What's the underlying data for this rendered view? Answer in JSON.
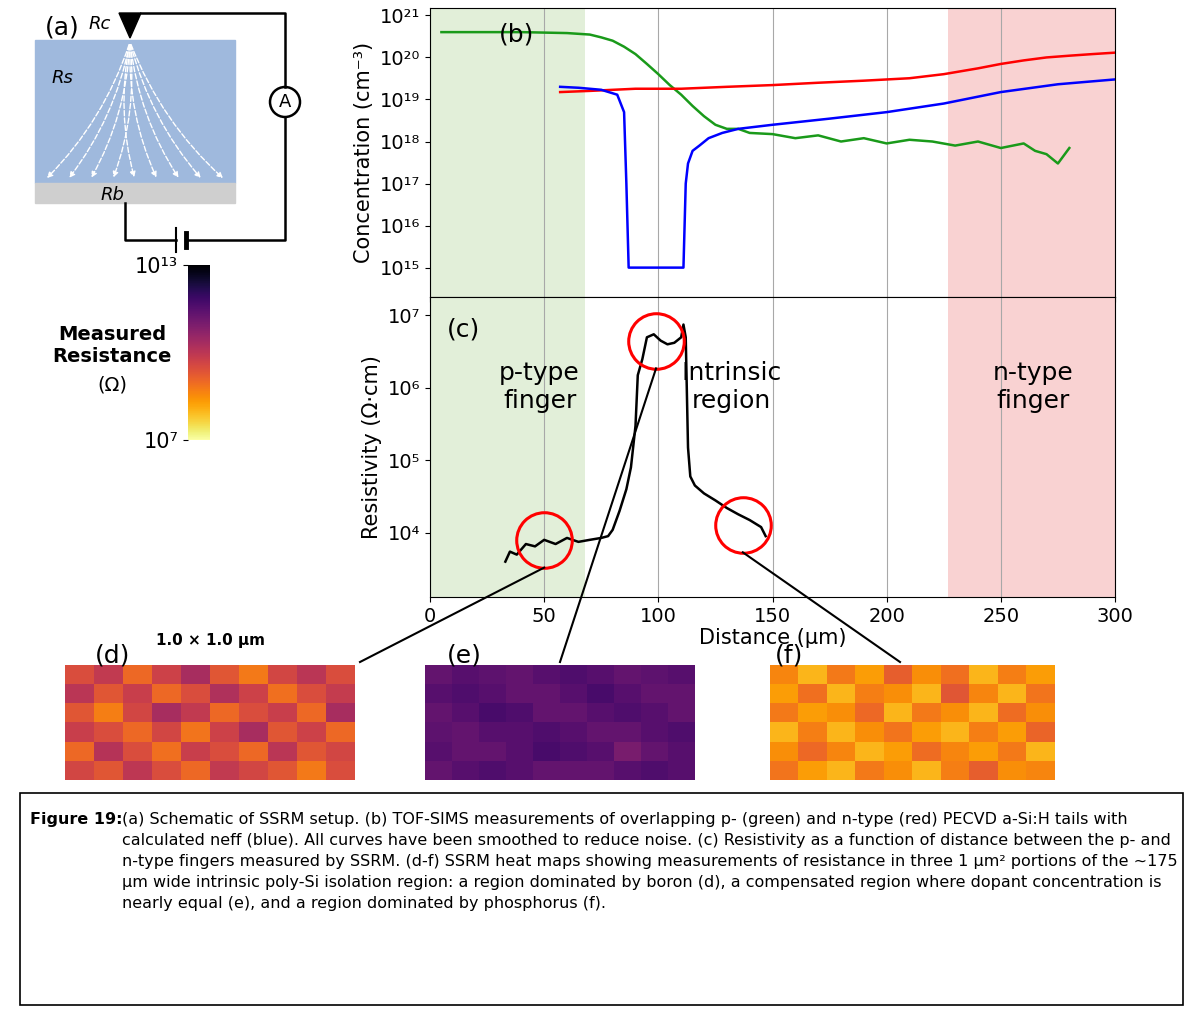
{
  "schematic": {
    "label": "(a)",
    "contact": "Rc",
    "spreading": "Rs",
    "back": "Rb",
    "meter": "A"
  },
  "colorbar": {
    "label": "Measured Resistance",
    "unit": "(Ω)",
    "log": true,
    "range": [
      10000000.0,
      10000000000000.0
    ],
    "ticks": [
      {
        "value": 10000000000000.0,
        "label": "10¹³"
      },
      {
        "value": 10000000.0,
        "label": "10⁷"
      }
    ]
  },
  "chart_data": [
    {
      "label": "(b)",
      "type": "line",
      "ylabel": "Concentration (cm⁻³)",
      "log": "y",
      "grid": "x",
      "tick_labels": "y",
      "xlim": [
        0,
        300
      ],
      "xticks": [
        0,
        50,
        100,
        150,
        200,
        250,
        300
      ],
      "ylim": [
        200000000000000.0,
        1.5e+21
      ],
      "yticks": [
        {
          "value": 1000000000000000.0,
          "label": "10¹⁵"
        },
        {
          "value": 1e+16,
          "label": "10¹⁶"
        },
        {
          "value": 1e+17,
          "label": "10¹⁷"
        },
        {
          "value": 1e+18,
          "label": "10¹⁸"
        },
        {
          "value": 1e+19,
          "label": "10¹⁹"
        },
        {
          "value": 1e+20,
          "label": "10²⁰"
        },
        {
          "value": 1e+21,
          "label": "10²¹"
        }
      ],
      "regions": [
        {
          "x": [
            0,
            68
          ],
          "color": "#e2efd9"
        },
        {
          "x": [
            227,
            300
          ],
          "color": "#f9d2d2"
        }
      ],
      "series": [
        {
          "color": "#1a9a1a",
          "x": [
            5,
            20,
            40,
            60,
            70,
            75,
            80,
            85,
            90,
            95,
            100,
            105,
            110,
            115,
            120,
            125,
            130,
            135,
            140,
            150,
            160,
            170,
            180,
            190,
            200,
            210,
            220,
            230,
            240,
            250,
            260,
            265,
            270,
            275,
            280
          ],
          "values": [
            4e+20,
            4e+20,
            4e+20,
            3.8e+20,
            3.5e+20,
            3e+20,
            2.5e+20,
            1.8e+20,
            1.2e+20,
            7e+19,
            4e+19,
            2.2e+19,
            1.3e+19,
            7e+18,
            4e+18,
            2.5e+18,
            2e+18,
            2e+18,
            1.6e+18,
            1.5e+18,
            1.2e+18,
            1.4e+18,
            1e+18,
            1.2e+18,
            9e+17,
            1.1e+18,
            1e+18,
            8e+17,
            1e+18,
            7e+17,
            9e+17,
            6e+17,
            5e+17,
            3e+17,
            7e+17
          ]
        },
        {
          "color": "#ff0000",
          "x": [
            57,
            70,
            90,
            110,
            130,
            150,
            170,
            190,
            210,
            225,
            240,
            250,
            260,
            270,
            280,
            290,
            300
          ],
          "values": [
            1.5e+19,
            1.6e+19,
            1.8e+19,
            1.8e+19,
            2e+19,
            2.2e+19,
            2.5e+19,
            2.8e+19,
            3.2e+19,
            4e+19,
            5.5e+19,
            7e+19,
            8.5e+19,
            1e+20,
            1.1e+20,
            1.2e+20,
            1.3e+20
          ]
        },
        {
          "color": "#0000ff",
          "x": [
            57,
            65,
            75,
            82,
            85,
            86,
            87,
            100,
            111,
            112,
            113,
            115,
            118,
            122,
            128,
            135,
            150,
            175,
            200,
            225,
            250,
            275,
            300
          ],
          "values": [
            2e+19,
            1.9e+19,
            1.7e+19,
            1.3e+19,
            5e+18,
            1e+17,
            1000000000000000.0,
            1000000000000000.0,
            1000000000000000.0,
            1e+17,
            3e+17,
            6e+17,
            8e+17,
            1.2e+18,
            1.6e+18,
            2e+18,
            2.5e+18,
            3.5e+18,
            5e+18,
            8e+18,
            1.5e+19,
            2.3e+19,
            3e+19
          ]
        }
      ]
    },
    {
      "label": "(c)",
      "type": "line",
      "xlabel": "Distance (µm)",
      "ylabel": "Resistivity (Ω·cm)",
      "log": "y",
      "grid": "x",
      "xlim": [
        0,
        300
      ],
      "xticks": [
        0,
        50,
        100,
        150,
        200,
        250,
        300
      ],
      "ylim": [
        1300,
        18000000.0
      ],
      "yticks": [
        {
          "value": 10000.0,
          "label": "10⁴"
        },
        {
          "value": 100000.0,
          "label": "10⁵"
        },
        {
          "value": 1000000.0,
          "label": "10⁶"
        },
        {
          "value": 10000000.0,
          "label": "10⁷"
        }
      ],
      "regions": [
        {
          "x": [
            0,
            68
          ],
          "color": "#e2efd9"
        },
        {
          "x": [
            227,
            300
          ],
          "color": "#f9d2d2"
        }
      ],
      "annotations": [
        "p-type finger",
        "Intrinsic region",
        "n-type finger"
      ],
      "series": [
        {
          "color": "#000000",
          "x": [
            33,
            35,
            38,
            42,
            46,
            50,
            55,
            60,
            65,
            70,
            75,
            78,
            80,
            83,
            86,
            88,
            90,
            91,
            93,
            95,
            98,
            101,
            104,
            107,
            110,
            111,
            112,
            113,
            114,
            116,
            120,
            125,
            130,
            135,
            140,
            145,
            147
          ],
          "values": [
            4000,
            5500,
            5000,
            7000,
            6500,
            8000,
            7000,
            8500,
            7500,
            8000,
            8500,
            9000,
            11000,
            20000,
            40000,
            80000,
            300000,
            1500000,
            2500000,
            5000000,
            5500000,
            4500000,
            4000000,
            4200000,
            5000000,
            7500000,
            5000000,
            150000,
            60000,
            45000,
            35000,
            28000,
            22000,
            18000,
            15000,
            12000,
            9000
          ]
        }
      ],
      "circles": {
        "color": "#ff0000",
        "x": [
          50,
          99,
          137
        ],
        "values": [
          8000,
          4500000,
          13000
        ]
      }
    }
  ],
  "heat_maps": {
    "size_label": "1.0 × 1.0 µm",
    "maps": [
      {
        "label": "(d)",
        "cells": [
          [
            3000000000.0,
            8000000000.0,
            1000000000.0,
            5000000000.0,
            20000000000.0,
            2000000000.0,
            600000000.0,
            4000000000.0,
            10000000000.0,
            3000000000.0
          ],
          [
            10000000000.0,
            2000000000.0,
            6000000000.0,
            1000000000.0,
            3000000000.0,
            15000000000.0,
            5000000000.0,
            800000000.0,
            3000000000.0,
            7000000000.0
          ],
          [
            2000000000.0,
            500000000.0,
            4000000000.0,
            20000000000.0,
            8000000000.0,
            1000000000.0,
            3000000000.0,
            6000000000.0,
            1000000000.0,
            20000000000.0
          ],
          [
            6000000000.0,
            3000000000.0,
            1000000000.0,
            4000000000.0,
            700000000.0,
            5000000000.0,
            20000000000.0,
            2000000000.0,
            5000000000.0,
            1000000000.0
          ],
          [
            1000000000.0,
            12000000000.0,
            3000000000.0,
            800000000.0,
            6000000000.0,
            3000000000.0,
            1000000000.0,
            10000000000.0,
            2000000000.0,
            4000000000.0
          ],
          [
            4000000000.0,
            2000000000.0,
            9000000000.0,
            3000000000.0,
            1000000000.0,
            8000000000.0,
            4000000000.0,
            2000000000.0,
            600000000.0,
            3000000000.0
          ]
        ]
      },
      {
        "label": "(e)",
        "cells": [
          [
            200000000000.0,
            300000000000.0,
            250000000000.0,
            200000000000.0,
            300000000000.0,
            400000000000.0,
            300000000000.0,
            200000000000.0,
            250000000000.0,
            300000000000.0
          ],
          [
            300000000000.0,
            400000000000.0,
            300000000000.0,
            200000000000.0,
            200000000000.0,
            300000000000.0,
            500000000000.0,
            300000000000.0,
            200000000000.0,
            200000000000.0
          ],
          [
            200000000000.0,
            300000000000.0,
            500000000000.0,
            400000000000.0,
            200000000000.0,
            200000000000.0,
            300000000000.0,
            400000000000.0,
            300000000000.0,
            200000000000.0
          ],
          [
            250000000000.0,
            200000000000.0,
            300000000000.0,
            300000000000.0,
            400000000000.0,
            300000000000.0,
            200000000000.0,
            200000000000.0,
            300000000000.0,
            400000000000.0
          ],
          [
            300000000000.0,
            200000000000.0,
            200000000000.0,
            300000000000.0,
            500000000000.0,
            400000000000.0,
            300000000000.0,
            100000000000.0,
            200000000000.0,
            300000000000.0
          ],
          [
            200000000000.0,
            300000000000.0,
            400000000000.0,
            300000000000.0,
            200000000000.0,
            200000000000.0,
            200000000000.0,
            300000000000.0,
            400000000000.0,
            300000000000.0
          ]
        ]
      },
      {
        "label": "(f)",
        "cells": [
          [
            400000000.0,
            100000000.0,
            600000000.0,
            200000000.0,
            1500000000.0,
            300000000.0,
            800000000.0,
            100000000.0,
            500000000.0,
            200000000.0
          ],
          [
            200000000.0,
            800000000.0,
            100000000.0,
            500000000.0,
            300000000.0,
            100000000.0,
            2000000000.0,
            400000000.0,
            100000000.0,
            700000000.0
          ],
          [
            600000000.0,
            200000000.0,
            300000000.0,
            1000000000.0,
            100000000.0,
            600000000.0,
            300000000.0,
            100000000.0,
            900000000.0,
            300000000.0
          ],
          [
            100000000.0,
            500000000.0,
            100000000.0,
            300000000.0,
            700000000.0,
            200000000.0,
            100000000.0,
            500000000.0,
            200000000.0,
            1200000000.0
          ],
          [
            300000000.0,
            1000000000.0,
            400000000.0,
            100000000.0,
            200000000.0,
            900000000.0,
            400000000.0,
            200000000.0,
            600000000.0,
            100000000.0
          ],
          [
            700000000.0,
            200000000.0,
            100000000.0,
            600000000.0,
            300000000.0,
            100000000.0,
            500000000.0,
            1500000000.0,
            300000000.0,
            400000000.0
          ]
        ]
      }
    ]
  },
  "caption": {
    "label": "Figure 19:",
    "text": "(a) Schematic of SSRM setup. (b) TOF-SIMS measurements of overlapping p- (green) and n-type (red) PECVD a-Si:H tails with calculated neff (blue). All curves have been smoothed to reduce noise. (c) Resistivity as a function of distance between the p- and n-type fingers measured by SSRM. (d-f) SSRM heat maps showing measurements of resistance in three 1 µm² portions of the ~175 µm wide intrinsic poly-Si isolation region: a region dominated by boron (d), a compensated region where dopant concentration is nearly equal (e), and a region dominated by phosphorus (f)."
  }
}
